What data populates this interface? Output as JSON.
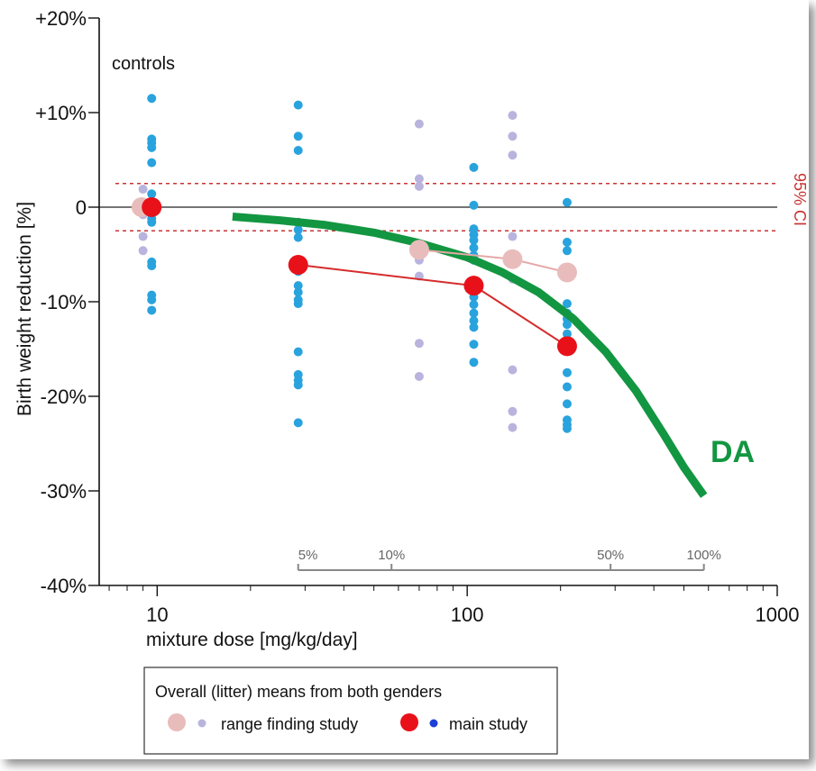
{
  "chart_data": {
    "type": "scatter",
    "xlabel": "mixture dose [mg/kg/day]",
    "ylabel": "Birth weight reduction [%]",
    "x_scale": "log",
    "xlim": [
      6.5,
      1000
    ],
    "ylim": [
      -40,
      20
    ],
    "x_ticks": [
      {
        "value": 10,
        "label": "10"
      },
      {
        "value": 100,
        "label": "100"
      },
      {
        "value": 1000,
        "label": "1000"
      }
    ],
    "y_ticks": [
      {
        "value": 20,
        "label": "+20%"
      },
      {
        "value": 10,
        "label": "+10%"
      },
      {
        "value": 0,
        "label": "0"
      },
      {
        "value": -10,
        "label": "-10%"
      },
      {
        "value": -20,
        "label": "-20%"
      },
      {
        "value": -30,
        "label": "-30%"
      },
      {
        "value": -40,
        "label": "-40%"
      }
    ],
    "colors": {
      "main_point": "#29a3dd",
      "range_point": "#b9b4de",
      "main_mean": "#e8111a",
      "range_mean": "#e9bcbc",
      "main_line": "#d62b2b",
      "range_line": "#e6a8a8",
      "da_curve": "#139641",
      "ci_line": "#c93333"
    },
    "annotations": {
      "controls": "controls",
      "ci": "95% CI",
      "ci_bounds": [
        2.5,
        -2.5
      ],
      "da": "DA"
    },
    "main_individual": [
      {
        "x": 9.6,
        "y": [
          11.5,
          7.2,
          6.8,
          6.3,
          4.7,
          1.4,
          0.5,
          -0.5,
          -1.2,
          -1.6,
          -5.8,
          -6.2,
          -9.3,
          -9.8,
          -10.9
        ]
      },
      {
        "x": 28.5,
        "y": [
          10.8,
          7.5,
          6.0,
          -1.6,
          -2.4,
          -3.2,
          -5.8,
          -6.8,
          -8.3,
          -9.0,
          -9.8,
          -10.2,
          -15.3,
          -17.7,
          -18.3,
          -18.8,
          -22.8
        ]
      },
      {
        "x": 105,
        "y": [
          4.2,
          0.2,
          -2.3,
          -2.9,
          -3.5,
          -4.3,
          -5.1,
          -5.6,
          -7.8,
          -9.0,
          -9.5,
          -10.3,
          -11.2,
          -12.0,
          -12.7,
          -14.5,
          -16.4
        ]
      },
      {
        "x": 210,
        "y": [
          0.5,
          -3.7,
          -4.6,
          -6.9,
          -10.2,
          -11.2,
          -11.8,
          -12.4,
          -13.4,
          -14.0,
          -15.0,
          -17.5,
          -19.0,
          -20.8,
          -22.5,
          -23.0,
          -23.4
        ]
      }
    ],
    "range_individual": [
      {
        "x": 9.0,
        "y": [
          1.9,
          0.4,
          -0.2,
          -0.8,
          -3.1,
          -4.6
        ]
      },
      {
        "x": 70,
        "y": [
          8.8,
          3.0,
          2.2,
          -4.3,
          -5.6,
          -7.3,
          -14.4,
          -17.9
        ]
      },
      {
        "x": 140,
        "y": [
          9.7,
          7.5,
          5.5,
          -3.1,
          -5.3,
          -7.6,
          -17.2,
          -21.6,
          -23.3
        ]
      },
      {
        "x": 210,
        "y": [
          -6.5,
          -7.2
        ]
      }
    ],
    "series": [
      {
        "name": "range finding study",
        "x": [
          8.9,
          70,
          140,
          210
        ],
        "y": [
          0.0,
          -4.5,
          -5.5,
          -6.9
        ]
      },
      {
        "name": "main study",
        "x": [
          9.6,
          28.5,
          105,
          210
        ],
        "y": [
          0.0,
          -6.1,
          -8.3,
          -14.7
        ]
      }
    ],
    "da_curve": {
      "name": "DA",
      "x": [
        17.5,
        25,
        35,
        50,
        70,
        100,
        130,
        170,
        220,
        280,
        350,
        430,
        500,
        580
      ],
      "y": [
        -1.0,
        -1.4,
        -1.9,
        -2.7,
        -3.8,
        -5.3,
        -6.9,
        -9.0,
        -11.8,
        -15.3,
        -19.4,
        -24.0,
        -27.5,
        -30.5
      ]
    },
    "mixture_scale": {
      "x_start": 28.5,
      "x_end": 580,
      "marks": [
        {
          "x": 28.5,
          "label": "5%"
        },
        {
          "x": 57,
          "label": "10%"
        },
        {
          "x": 290,
          "label": "50%"
        },
        {
          "x": 580,
          "label": "100%"
        }
      ]
    },
    "legend": {
      "title": "Overall (litter) means from both genders",
      "range_label": "range finding study",
      "main_label": "main study"
    }
  }
}
